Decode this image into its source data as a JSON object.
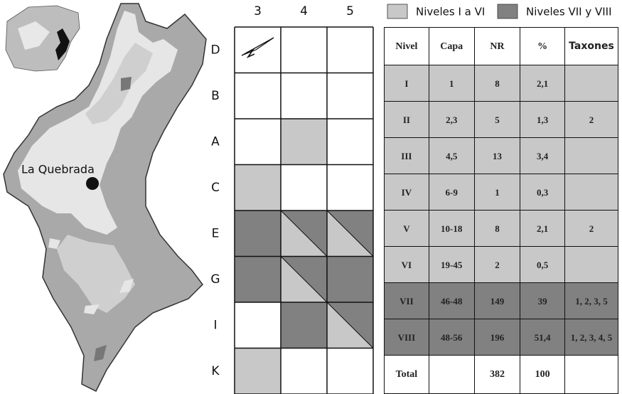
{
  "map": {
    "label": "La Quebrada"
  },
  "legend": [
    "Niveles I a VI",
    "Niveles VII y VIII"
  ],
  "grid": {
    "columns": [
      "3",
      "4",
      "5"
    ],
    "rows": [
      "D",
      "B",
      "A",
      "C",
      "E",
      "G",
      "I",
      "K"
    ]
  },
  "table": {
    "header": [
      "Nivel",
      "Capa",
      "NR",
      "%",
      "Taxones"
    ],
    "rows": [
      [
        "I",
        "1",
        "8",
        "2,1",
        null
      ],
      [
        "II",
        "2,3",
        "5",
        "1,3",
        "2"
      ],
      [
        "III",
        "4,5",
        "13",
        "3,4",
        null
      ],
      [
        "IV",
        "6-9",
        "1",
        "0,3",
        null
      ],
      [
        "V",
        "10-18",
        "8",
        "2,1",
        "2"
      ],
      [
        "VI",
        "19-45",
        "2",
        "0,5",
        null
      ],
      [
        "VII",
        "46-48",
        "149",
        "39",
        "1, 2, 3, 5"
      ],
      [
        "VIII",
        "48-56",
        "196",
        "51,4",
        "1, 2, 3, 4, 5"
      ]
    ],
    "total": [
      "Total",
      null,
      "382",
      "100",
      null
    ]
  }
}
